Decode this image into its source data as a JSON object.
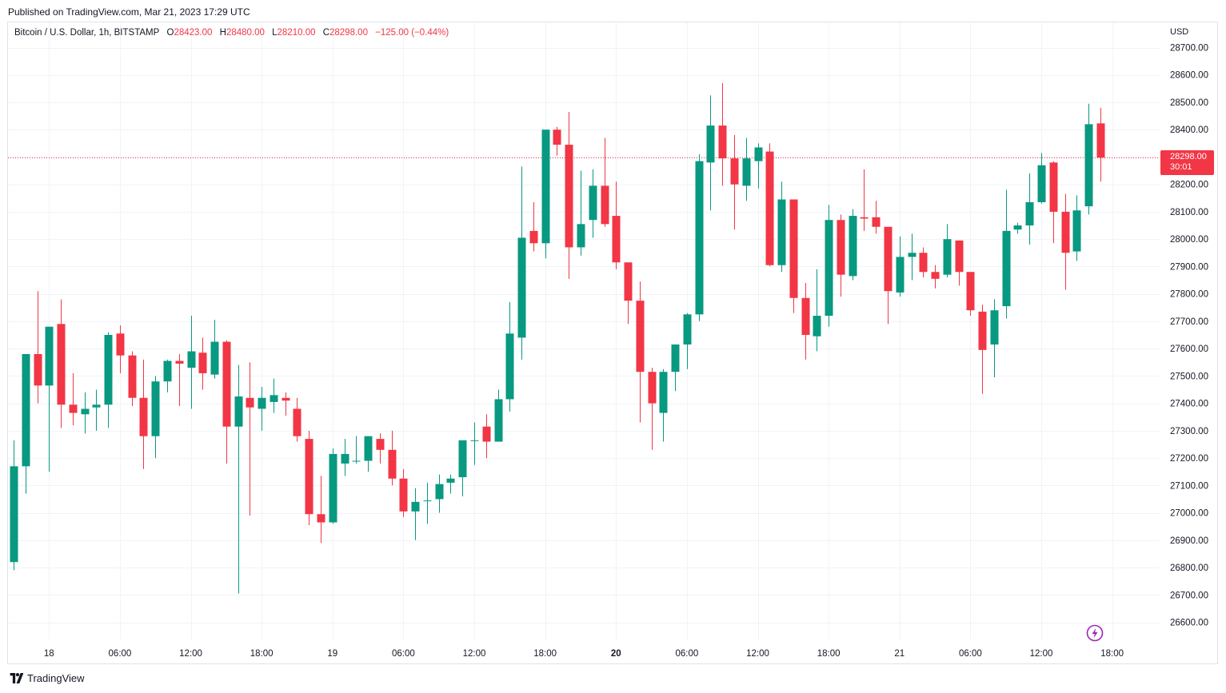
{
  "header": {
    "published": "Published on TradingView.com, Mar 21, 2023 17:29 UTC"
  },
  "legend": {
    "symbol": "Bitcoin / U.S. Dollar, 1h, BITSTAMP",
    "open_label": "O",
    "open": "28423.00",
    "high_label": "H",
    "high": "28480.00",
    "low_label": "L",
    "low": "28210.00",
    "close_label": "C",
    "close": "28298.00",
    "change": "−125.00 (−0.44%)"
  },
  "price_axis": {
    "currency": "USD",
    "last_price": "28298.00",
    "countdown": "30:01"
  },
  "footer": {
    "brand": "TradingView"
  },
  "colors": {
    "up": "#089981",
    "down": "#f23645",
    "grid": "#f0f3fa",
    "text": "#131722"
  },
  "icons": {
    "alert": "lightning-bolt-icon",
    "logo": "tradingview-logo-icon"
  },
  "chart_data": {
    "type": "candlestick",
    "ylim": [
      26525,
      28825
    ],
    "y_ticks": [
      26600,
      26700,
      26800,
      26900,
      27000,
      27100,
      27200,
      27300,
      27400,
      27500,
      27600,
      27700,
      27800,
      27900,
      28000,
      28100,
      28200,
      28300,
      28400,
      28500,
      28600,
      28700
    ],
    "y_tick_labels": [
      "26600.00",
      "26700.00",
      "26800.00",
      "26900.00",
      "27000.00",
      "27100.00",
      "27200.00",
      "27300.00",
      "27400.00",
      "27500.00",
      "27600.00",
      "27700.00",
      "27800.00",
      "27900.00",
      "28000.00",
      "28100.00",
      "28200.00",
      "28300.00",
      "28400.00",
      "28500.00",
      "28600.00",
      "28700.00"
    ],
    "x_ticks": [
      {
        "i": 3,
        "label": "18",
        "bold": false
      },
      {
        "i": 9,
        "label": "06:00",
        "bold": false
      },
      {
        "i": 15,
        "label": "12:00",
        "bold": false
      },
      {
        "i": 21,
        "label": "18:00",
        "bold": false
      },
      {
        "i": 27,
        "label": "19",
        "bold": false
      },
      {
        "i": 33,
        "label": "06:00",
        "bold": false
      },
      {
        "i": 39,
        "label": "12:00",
        "bold": false
      },
      {
        "i": 45,
        "label": "18:00",
        "bold": false
      },
      {
        "i": 51,
        "label": "20",
        "bold": true
      },
      {
        "i": 57,
        "label": "06:00",
        "bold": false
      },
      {
        "i": 63,
        "label": "12:00",
        "bold": false
      },
      {
        "i": 69,
        "label": "18:00",
        "bold": false
      },
      {
        "i": 75,
        "label": "21",
        "bold": false
      },
      {
        "i": 81,
        "label": "06:00",
        "bold": false
      },
      {
        "i": 87,
        "label": "12:00",
        "bold": false
      },
      {
        "i": 93,
        "label": "18:00",
        "bold": false
      }
    ],
    "last_price": 28298,
    "candles": [
      [
        26820,
        27265,
        26790,
        27170
      ],
      [
        27170,
        27580,
        27070,
        27580
      ],
      [
        27580,
        27810,
        27400,
        27465
      ],
      [
        27465,
        27680,
        27150,
        27680
      ],
      [
        27690,
        27780,
        27310,
        27395
      ],
      [
        27395,
        27510,
        27320,
        27365
      ],
      [
        27360,
        27440,
        27290,
        27380
      ],
      [
        27385,
        27450,
        27300,
        27395
      ],
      [
        27395,
        27660,
        27310,
        27650
      ],
      [
        27655,
        27685,
        27510,
        27575
      ],
      [
        27575,
        27590,
        27390,
        27420
      ],
      [
        27420,
        27560,
        27160,
        27280
      ],
      [
        27280,
        27500,
        27200,
        27480
      ],
      [
        27480,
        27560,
        27440,
        27555
      ],
      [
        27555,
        27580,
        27390,
        27545
      ],
      [
        27530,
        27720,
        27380,
        27590
      ],
      [
        27585,
        27640,
        27450,
        27510
      ],
      [
        27505,
        27705,
        27490,
        27625
      ],
      [
        27625,
        27630,
        27180,
        27315
      ],
      [
        27315,
        27540,
        26705,
        27425
      ],
      [
        27420,
        27550,
        26990,
        27385
      ],
      [
        27380,
        27460,
        27300,
        27420
      ],
      [
        27405,
        27490,
        27365,
        27430
      ],
      [
        27420,
        27440,
        27355,
        27410
      ],
      [
        27380,
        27420,
        27260,
        27280
      ],
      [
        27270,
        27300,
        26955,
        26995
      ],
      [
        26995,
        27135,
        26890,
        26965
      ],
      [
        26965,
        27235,
        26960,
        27215
      ],
      [
        27180,
        27270,
        27135,
        27215
      ],
      [
        27190,
        27280,
        27180,
        27190
      ],
      [
        27190,
        27280,
        27150,
        27280
      ],
      [
        27270,
        27290,
        27180,
        27230
      ],
      [
        27230,
        27300,
        27100,
        27125
      ],
      [
        27125,
        27160,
        26985,
        27005
      ],
      [
        27005,
        27090,
        26900,
        27040
      ],
      [
        27045,
        27110,
        26960,
        27045
      ],
      [
        27050,
        27140,
        27000,
        27105
      ],
      [
        27110,
        27140,
        27070,
        27125
      ],
      [
        27130,
        27260,
        27060,
        27265
      ],
      [
        27265,
        27330,
        27175,
        27265
      ],
      [
        27315,
        27360,
        27200,
        27260
      ],
      [
        27260,
        27450,
        27260,
        27415
      ],
      [
        27415,
        27770,
        27370,
        27655
      ],
      [
        27640,
        28265,
        27560,
        28005
      ],
      [
        28030,
        28135,
        27955,
        27985
      ],
      [
        27985,
        28400,
        27930,
        28400
      ],
      [
        28400,
        28410,
        28305,
        28345
      ],
      [
        28345,
        28465,
        27855,
        27970
      ],
      [
        27970,
        28250,
        27940,
        28055
      ],
      [
        28070,
        28255,
        28005,
        28195
      ],
      [
        28195,
        28370,
        28045,
        28055
      ],
      [
        28085,
        28210,
        27890,
        27915
      ],
      [
        27915,
        27900,
        27690,
        27775
      ],
      [
        27775,
        27845,
        27330,
        27515
      ],
      [
        27515,
        27530,
        27230,
        27400
      ],
      [
        27365,
        27525,
        27260,
        27515
      ],
      [
        27515,
        27610,
        27445,
        27615
      ],
      [
        27615,
        27730,
        27525,
        27725
      ],
      [
        27725,
        28310,
        27700,
        28285
      ],
      [
        28280,
        28525,
        28105,
        28415
      ],
      [
        28415,
        28570,
        28195,
        28295
      ],
      [
        28295,
        28380,
        28035,
        28200
      ],
      [
        28195,
        28370,
        28140,
        28295
      ],
      [
        28285,
        28350,
        28185,
        28335
      ],
      [
        28320,
        28350,
        27900,
        27905
      ],
      [
        27905,
        28210,
        27880,
        28145
      ],
      [
        28145,
        28145,
        27730,
        27785
      ],
      [
        27785,
        27840,
        27560,
        27650
      ],
      [
        27645,
        27890,
        27590,
        27720
      ],
      [
        27720,
        28125,
        27680,
        28070
      ],
      [
        28070,
        28090,
        27790,
        27870
      ],
      [
        27865,
        28110,
        27850,
        28085
      ],
      [
        28080,
        28255,
        28030,
        28075
      ],
      [
        28080,
        28140,
        28020,
        28045
      ],
      [
        28045,
        28045,
        27690,
        27810
      ],
      [
        27805,
        28010,
        27790,
        27935
      ],
      [
        27935,
        28020,
        27850,
        27950
      ],
      [
        27950,
        27970,
        27860,
        27880
      ],
      [
        27880,
        27905,
        27820,
        27855
      ],
      [
        27870,
        28055,
        27860,
        28000
      ],
      [
        27995,
        27995,
        27830,
        27880
      ],
      [
        27880,
        27880,
        27720,
        27740
      ],
      [
        27735,
        27760,
        27435,
        27595
      ],
      [
        27615,
        27780,
        27495,
        27740
      ],
      [
        27755,
        28180,
        27710,
        28030
      ],
      [
        28035,
        28060,
        28020,
        28050
      ],
      [
        28050,
        28240,
        27980,
        28135
      ],
      [
        28135,
        28315,
        28130,
        28270
      ],
      [
        28280,
        28285,
        27985,
        28100
      ],
      [
        28100,
        28165,
        27815,
        27950
      ],
      [
        27955,
        28160,
        27920,
        28105
      ],
      [
        28120,
        28495,
        28090,
        28420
      ],
      [
        28423,
        28480,
        28210,
        28298
      ]
    ]
  }
}
